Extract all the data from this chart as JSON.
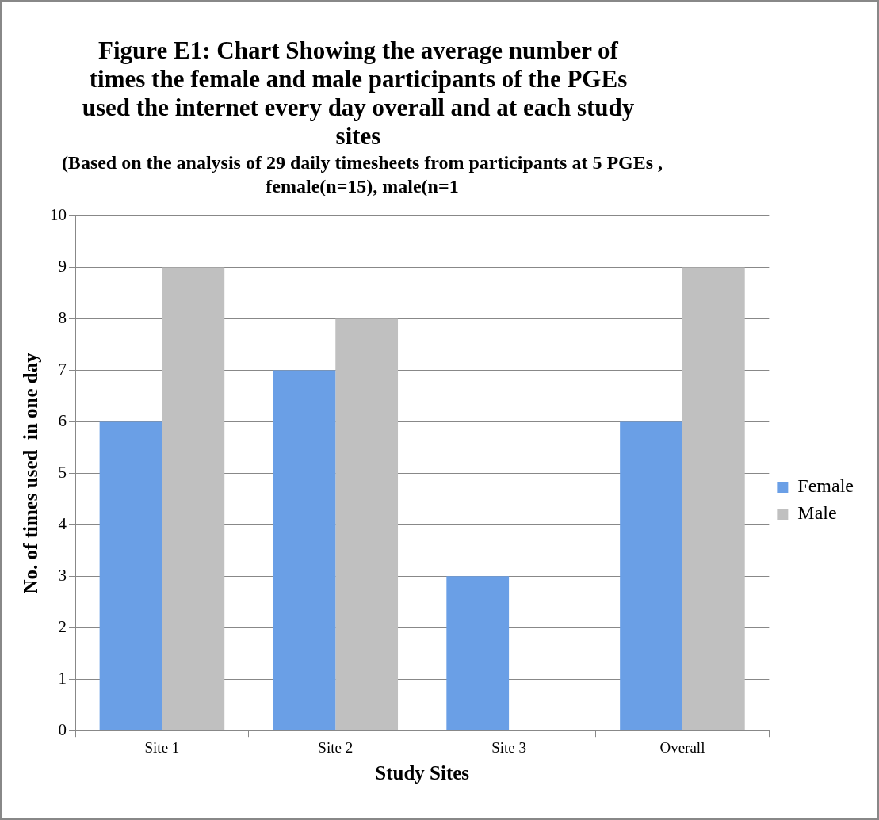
{
  "chart_data": {
    "type": "bar",
    "title": "Figure E1: Chart Showing the average number of times the female and male participants of the PGEs used the internet every day overall and at each study sites",
    "subtitle": "(Based on the analysis of 29 daily timesheets from participants at 5 PGEs , female(n=15), male(n=1",
    "xlabel": "Study Sites",
    "ylabel": "No. of times used  in one day",
    "categories": [
      "Site 1",
      "Site 2",
      "Site 3",
      "Overall"
    ],
    "series": [
      {
        "name": "Female",
        "color": "#6a9fe6",
        "values": [
          6,
          7,
          3,
          6
        ]
      },
      {
        "name": "Male",
        "color": "#c0c0c0",
        "values": [
          9,
          8,
          null,
          9
        ]
      }
    ],
    "ylim": [
      0,
      10
    ],
    "yticks": [
      0,
      1,
      2,
      3,
      4,
      5,
      6,
      7,
      8,
      9,
      10
    ],
    "grid": "y",
    "legend": "right"
  }
}
